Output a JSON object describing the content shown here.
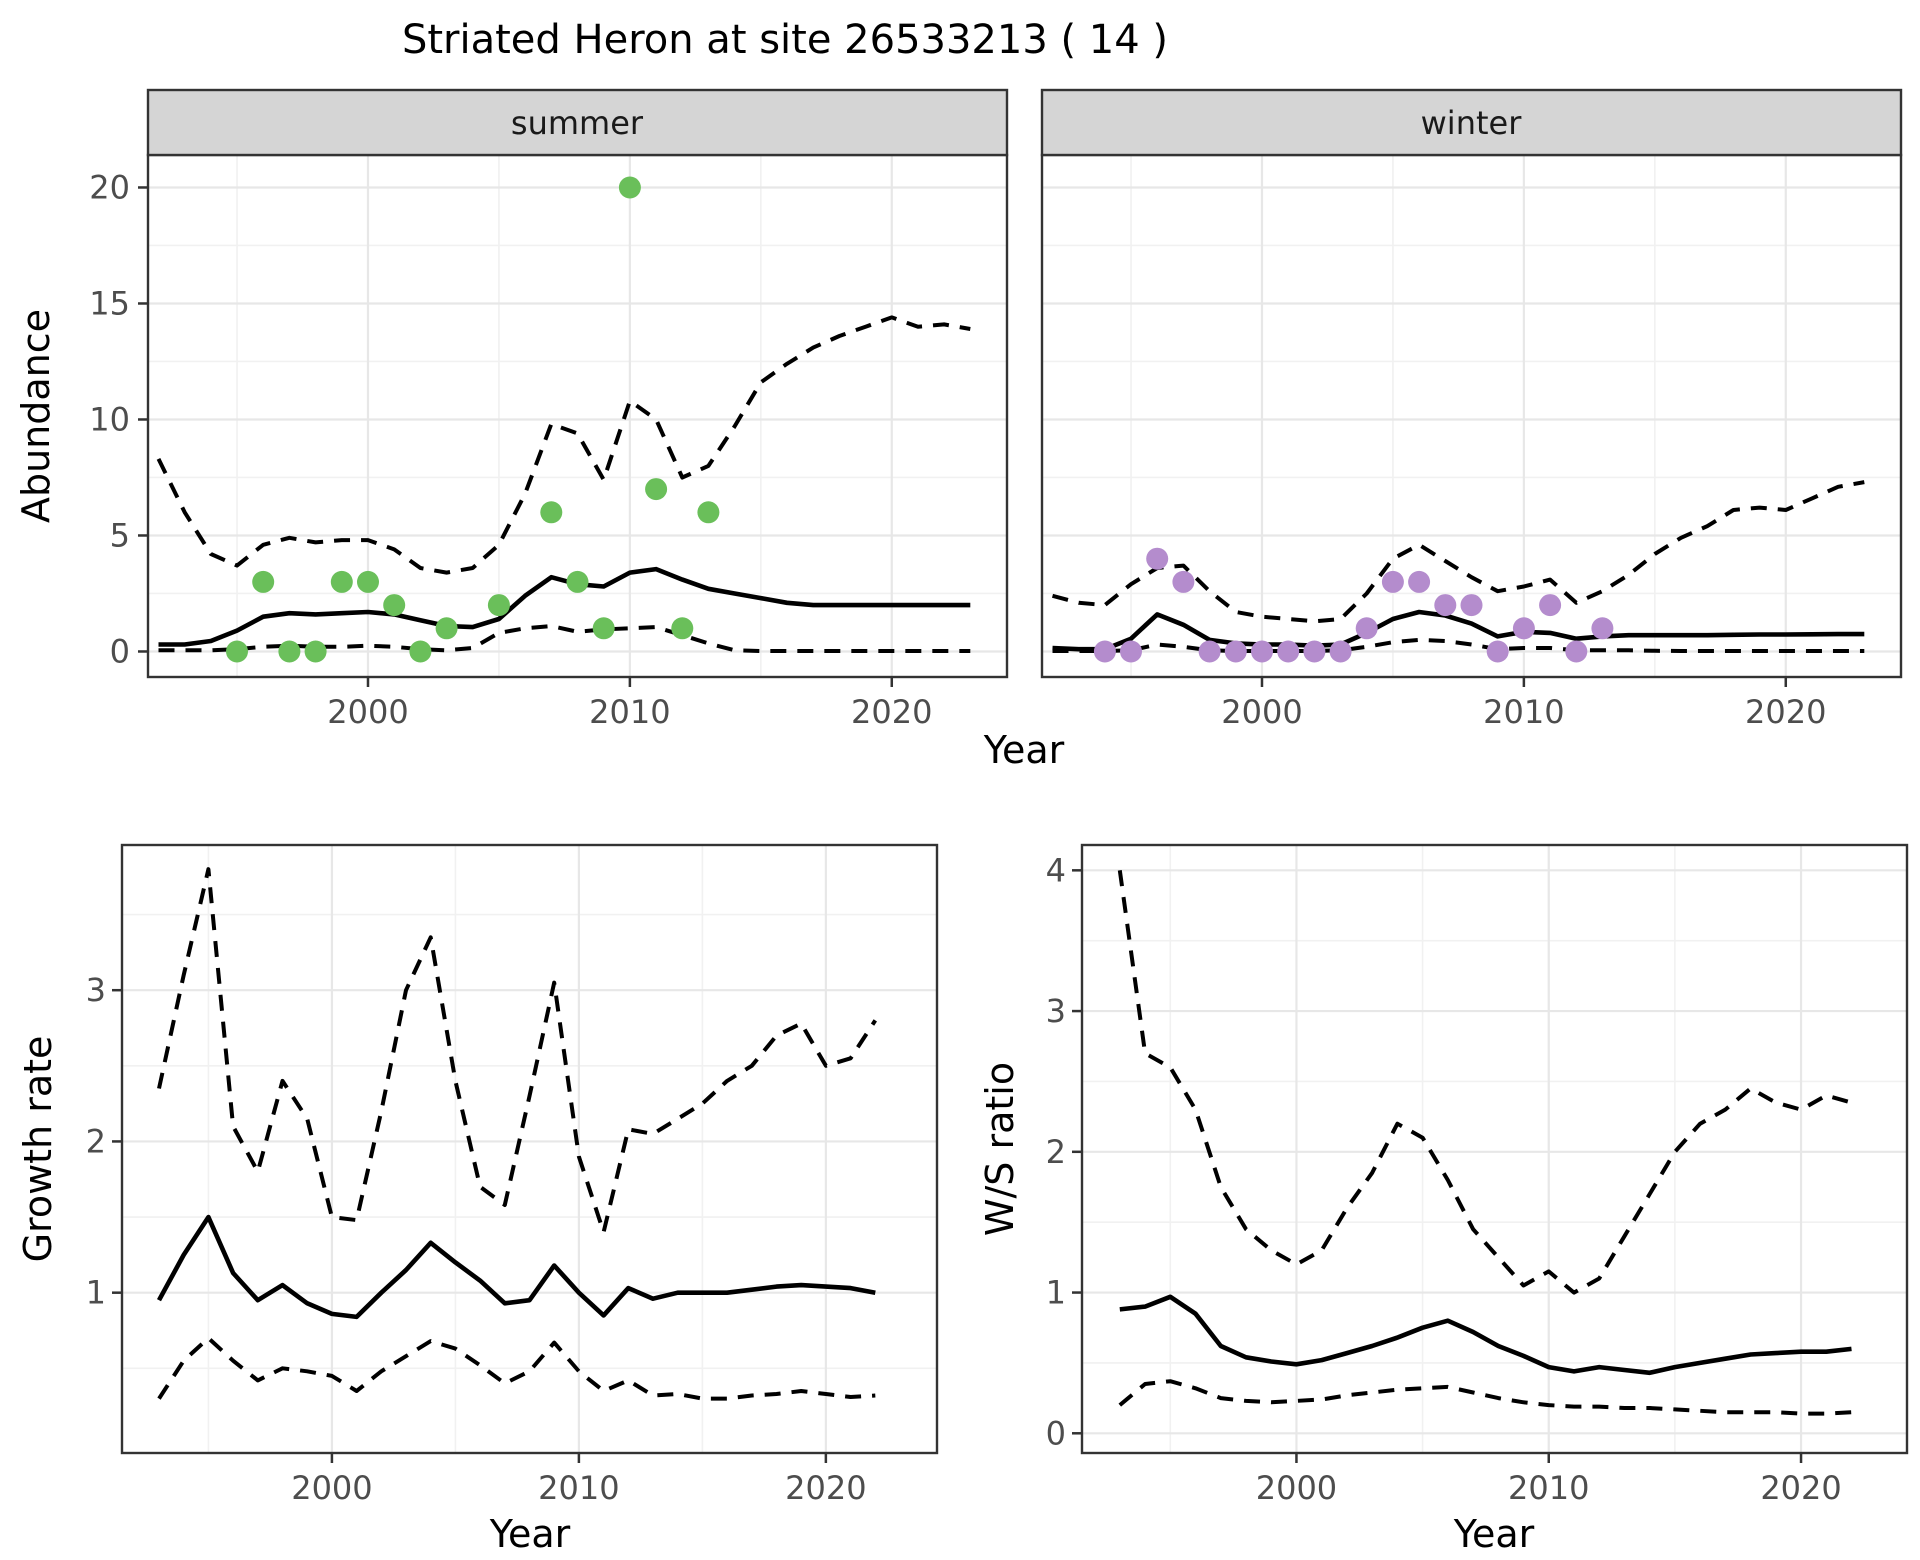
{
  "title": "Striated Heron at site 26533213 ( 14 )",
  "colors": {
    "summer_point": "#6abf5a",
    "winter_point": "#b48ccd",
    "line": "#000000",
    "grid_major": "#e7e7e7",
    "grid_minor": "#f1f1f1",
    "panel_border": "#333333",
    "strip_bg": "#d5d5d5",
    "tick_text": "#4d4d4d"
  },
  "chart_data": [
    {
      "type": "scatter",
      "facet": "summer",
      "ylabel": "Abundance",
      "xlabel": "Year",
      "xlim": [
        1991.6,
        2024.4
      ],
      "ylim": [
        -1.1,
        21.4
      ],
      "x_ticks": [
        2000,
        2010,
        2020
      ],
      "x_minor": [
        1995,
        2005,
        2015
      ],
      "y_ticks": [
        0,
        5,
        10,
        15,
        20
      ],
      "y_minor": [
        2.5,
        7.5,
        12.5,
        17.5
      ],
      "points": [
        [
          1995,
          0
        ],
        [
          1996,
          3
        ],
        [
          1997,
          0
        ],
        [
          1998,
          0
        ],
        [
          1999,
          3
        ],
        [
          2000,
          3
        ],
        [
          2001,
          2
        ],
        [
          2002,
          0
        ],
        [
          2003,
          1
        ],
        [
          2005,
          2
        ],
        [
          2007,
          6
        ],
        [
          2008,
          3
        ],
        [
          2009,
          1
        ],
        [
          2010,
          20
        ],
        [
          2011,
          7
        ],
        [
          2012,
          1
        ],
        [
          2013,
          6
        ]
      ],
      "point_color": "#6abf5a",
      "series": [
        {
          "name": "upper-95ci",
          "style": "dashed",
          "start_year": 1992,
          "values": [
            8.3,
            6.0,
            4.2,
            3.7,
            4.6,
            4.9,
            4.7,
            4.8,
            4.8,
            4.4,
            3.6,
            3.4,
            3.6,
            4.6,
            6.8,
            9.8,
            9.4,
            7.4,
            10.8,
            10.0,
            7.5,
            8.0,
            9.7,
            11.6,
            12.4,
            13.1,
            13.6,
            14.0,
            14.4,
            14.0,
            14.1,
            13.9
          ]
        },
        {
          "name": "lower-95ci",
          "style": "dashed",
          "start_year": 1992,
          "values": [
            0.05,
            0.05,
            0.05,
            0.1,
            0.2,
            0.25,
            0.2,
            0.2,
            0.25,
            0.2,
            0.1,
            0.05,
            0.15,
            0.8,
            1.0,
            1.1,
            0.85,
            0.95,
            1.0,
            1.05,
            0.7,
            0.35,
            0.05,
            0.02,
            0.02,
            0.02,
            0.02,
            0.02,
            0.02,
            0.02,
            0.02,
            0.02
          ]
        },
        {
          "name": "median",
          "style": "solid",
          "start_year": 1992,
          "values": [
            0.3,
            0.3,
            0.45,
            0.9,
            1.5,
            1.65,
            1.6,
            1.65,
            1.7,
            1.6,
            1.35,
            1.1,
            1.05,
            1.4,
            2.4,
            3.2,
            2.9,
            2.8,
            3.4,
            3.55,
            3.1,
            2.7,
            2.5,
            2.3,
            2.1,
            2.0,
            2.0,
            2.0,
            2.0,
            2.0,
            2.0,
            2.0
          ]
        }
      ]
    },
    {
      "type": "scatter",
      "facet": "winter",
      "xlim": [
        1991.6,
        2024.4
      ],
      "ylim": [
        -1.1,
        21.4
      ],
      "x_ticks": [
        2000,
        2010,
        2020
      ],
      "x_minor": [
        1995,
        2005,
        2015
      ],
      "y_ticks": [],
      "y_grid": [
        0,
        5,
        10,
        15,
        20
      ],
      "y_minor": [
        2.5,
        7.5,
        12.5,
        17.5
      ],
      "points": [
        [
          1994,
          0
        ],
        [
          1995,
          0
        ],
        [
          1996,
          4
        ],
        [
          1997,
          3
        ],
        [
          1998,
          0
        ],
        [
          1999,
          0
        ],
        [
          2000,
          0
        ],
        [
          2001,
          0
        ],
        [
          2002,
          0
        ],
        [
          2003,
          0
        ],
        [
          2004,
          1
        ],
        [
          2005,
          3
        ],
        [
          2006,
          3
        ],
        [
          2007,
          2
        ],
        [
          2008,
          2
        ],
        [
          2009,
          0
        ],
        [
          2010,
          1
        ],
        [
          2011,
          2
        ],
        [
          2012,
          0
        ],
        [
          2013,
          1
        ]
      ],
      "point_color": "#b48ccd",
      "series": [
        {
          "name": "upper-95ci",
          "style": "dashed",
          "start_year": 1992,
          "values": [
            2.4,
            2.1,
            2.0,
            2.9,
            3.6,
            3.7,
            2.6,
            1.7,
            1.5,
            1.4,
            1.3,
            1.4,
            2.5,
            4.0,
            4.6,
            3.9,
            3.2,
            2.6,
            2.8,
            3.1,
            2.1,
            2.6,
            3.3,
            4.2,
            4.9,
            5.4,
            6.1,
            6.2,
            6.1,
            6.6,
            7.1,
            7.3
          ]
        },
        {
          "name": "lower-95ci",
          "style": "dashed",
          "start_year": 1992,
          "values": [
            0.02,
            0.02,
            0.02,
            0.05,
            0.3,
            0.2,
            0.05,
            0.02,
            0.02,
            0.02,
            0.02,
            0.05,
            0.2,
            0.4,
            0.5,
            0.45,
            0.3,
            0.1,
            0.15,
            0.15,
            0.05,
            0.05,
            0.05,
            0.03,
            0.02,
            0.02,
            0.02,
            0.02,
            0.02,
            0.02,
            0.02,
            0.02
          ]
        },
        {
          "name": "median",
          "style": "solid",
          "start_year": 1992,
          "values": [
            0.15,
            0.1,
            0.1,
            0.55,
            1.6,
            1.15,
            0.5,
            0.35,
            0.3,
            0.3,
            0.25,
            0.3,
            0.8,
            1.4,
            1.7,
            1.55,
            1.2,
            0.65,
            0.85,
            0.8,
            0.55,
            0.65,
            0.7,
            0.7,
            0.7,
            0.7,
            0.72,
            0.73,
            0.73,
            0.74,
            0.75,
            0.75
          ]
        }
      ]
    },
    {
      "type": "line",
      "ylabel": "Growth rate",
      "xlabel": "Year",
      "xlim": [
        1991.5,
        2024.5
      ],
      "ylim": [
        -0.06,
        3.96
      ],
      "x_ticks": [
        2000,
        2010,
        2020
      ],
      "x_minor": [
        1995,
        2005,
        2015
      ],
      "y_ticks": [
        1,
        2,
        3
      ],
      "y_minor": [
        0.5,
        1.5,
        2.5,
        3.5
      ],
      "points": [],
      "series": [
        {
          "name": "upper-95ci",
          "style": "dashed",
          "start_year": 1993,
          "values": [
            2.35,
            3.1,
            3.8,
            2.1,
            1.8,
            2.4,
            2.15,
            1.5,
            1.48,
            2.2,
            3.0,
            3.35,
            2.4,
            1.7,
            1.58,
            2.3,
            3.05,
            1.9,
            1.4,
            2.08,
            2.05,
            2.15,
            2.25,
            2.4,
            2.5,
            2.7,
            2.78,
            2.5,
            2.55,
            2.8
          ]
        },
        {
          "name": "lower-95ci",
          "style": "dashed",
          "start_year": 1993,
          "values": [
            0.3,
            0.55,
            0.7,
            0.55,
            0.42,
            0.5,
            0.48,
            0.45,
            0.35,
            0.48,
            0.58,
            0.68,
            0.63,
            0.52,
            0.4,
            0.48,
            0.67,
            0.48,
            0.35,
            0.42,
            0.32,
            0.33,
            0.3,
            0.3,
            0.32,
            0.33,
            0.35,
            0.33,
            0.31,
            0.32
          ]
        },
        {
          "name": "median",
          "style": "solid",
          "start_year": 1993,
          "values": [
            0.95,
            1.25,
            1.5,
            1.13,
            0.95,
            1.05,
            0.93,
            0.86,
            0.84,
            1.0,
            1.15,
            1.33,
            1.2,
            1.08,
            0.93,
            0.95,
            1.18,
            1.0,
            0.85,
            1.03,
            0.96,
            1.0,
            1.0,
            1.0,
            1.02,
            1.04,
            1.05,
            1.04,
            1.03,
            1.0
          ]
        }
      ]
    },
    {
      "type": "line",
      "ylabel": "W/S ratio",
      "xlabel": "Year",
      "xlim": [
        1991.5,
        2024.2
      ],
      "ylim": [
        -0.14,
        4.18
      ],
      "x_ticks": [
        2000,
        2010,
        2020
      ],
      "x_minor": [
        1995,
        2005,
        2015
      ],
      "y_ticks": [
        0,
        1,
        2,
        3,
        4
      ],
      "y_minor": [
        0.5,
        1.5,
        2.5,
        3.5
      ],
      "points": [],
      "series": [
        {
          "name": "upper-95ci",
          "style": "dashed",
          "start_year": 1993,
          "values": [
            4.0,
            2.7,
            2.6,
            2.3,
            1.75,
            1.45,
            1.3,
            1.2,
            1.3,
            1.6,
            1.85,
            2.2,
            2.1,
            1.8,
            1.45,
            1.25,
            1.05,
            1.15,
            1.0,
            1.1,
            1.4,
            1.7,
            2.0,
            2.2,
            2.3,
            2.45,
            2.35,
            2.3,
            2.4,
            2.35
          ]
        },
        {
          "name": "lower-95ci",
          "style": "dashed",
          "start_year": 1993,
          "values": [
            0.2,
            0.35,
            0.37,
            0.32,
            0.25,
            0.23,
            0.22,
            0.23,
            0.24,
            0.27,
            0.29,
            0.31,
            0.32,
            0.33,
            0.29,
            0.25,
            0.22,
            0.2,
            0.19,
            0.19,
            0.18,
            0.18,
            0.17,
            0.16,
            0.15,
            0.15,
            0.15,
            0.14,
            0.14,
            0.15
          ]
        },
        {
          "name": "median",
          "style": "solid",
          "start_year": 1993,
          "values": [
            0.88,
            0.9,
            0.97,
            0.85,
            0.62,
            0.54,
            0.51,
            0.49,
            0.52,
            0.57,
            0.62,
            0.68,
            0.75,
            0.8,
            0.72,
            0.62,
            0.55,
            0.47,
            0.44,
            0.47,
            0.45,
            0.43,
            0.47,
            0.5,
            0.53,
            0.56,
            0.57,
            0.58,
            0.58,
            0.6
          ]
        }
      ]
    }
  ]
}
